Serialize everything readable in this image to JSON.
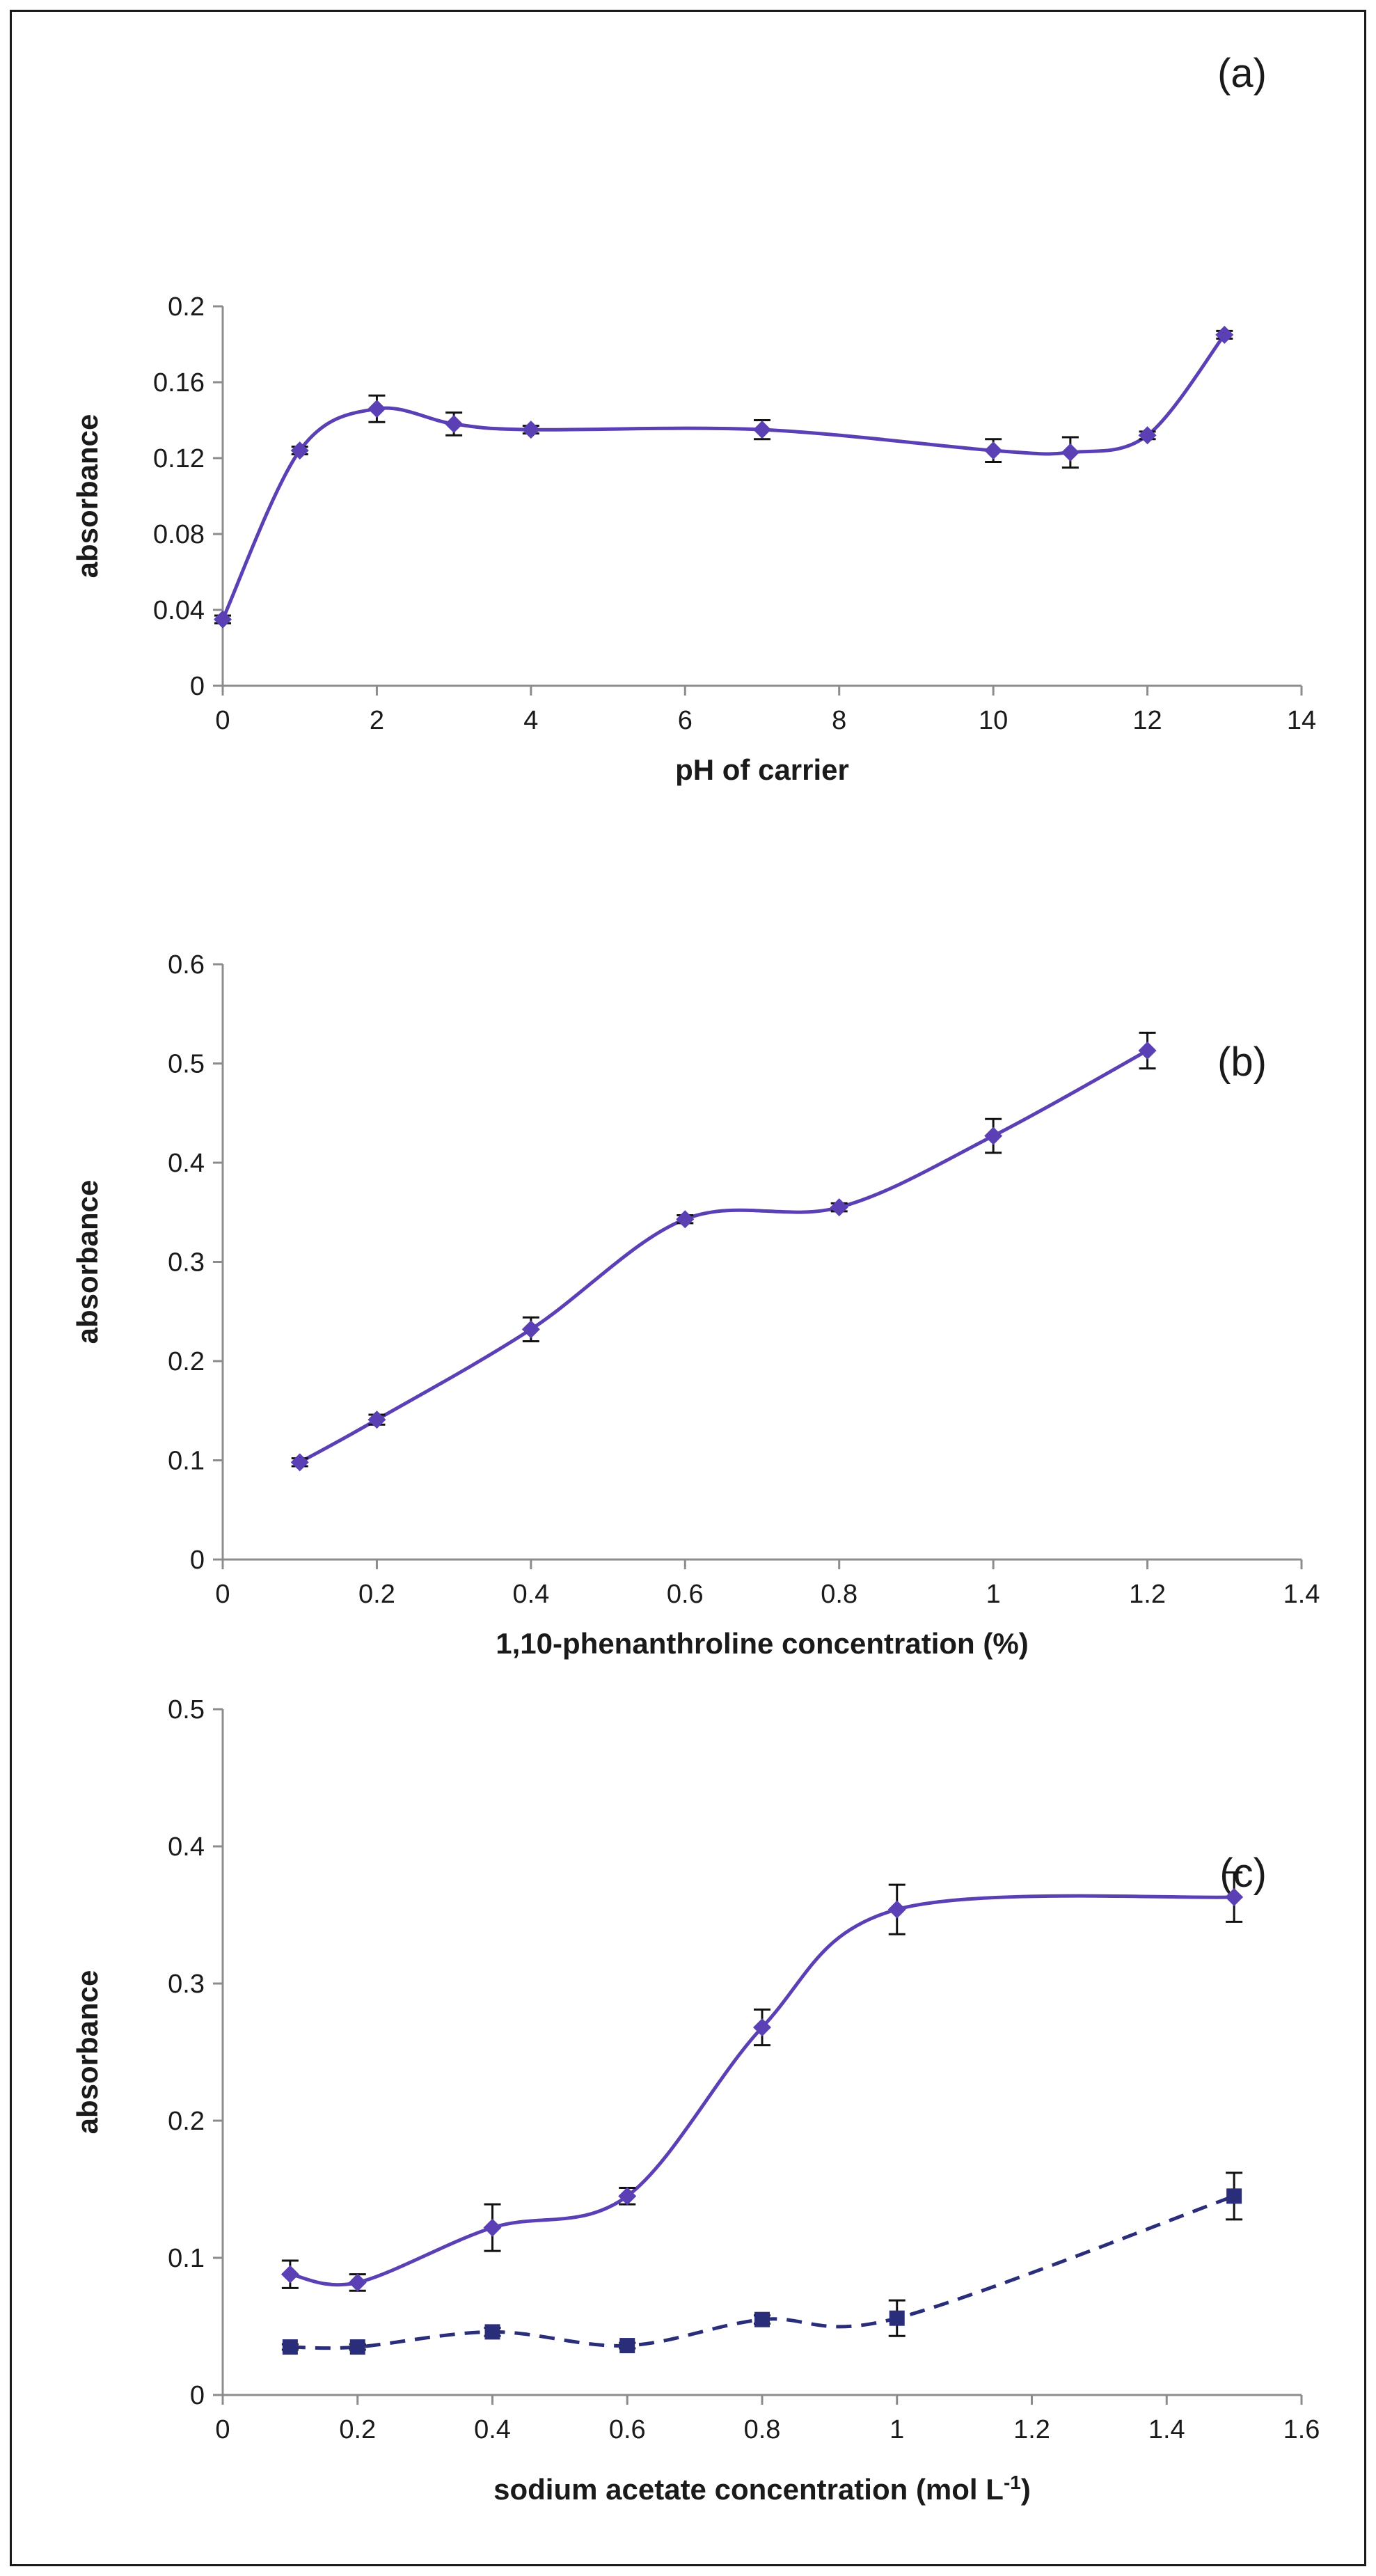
{
  "chart_data": [
    {
      "type": "line",
      "panel_label": "(a)",
      "xlabel": "pH of carrier",
      "ylabel": "absorbance",
      "xlim": [
        0,
        14
      ],
      "ylim": [
        0,
        0.2
      ],
      "x_ticks": [
        0,
        2,
        4,
        6,
        8,
        10,
        12,
        14
      ],
      "x_tick_labels": [
        "0",
        "2",
        "4",
        "6",
        "8",
        "10",
        "12",
        "14"
      ],
      "y_ticks": [
        0,
        0.04,
        0.08,
        0.12,
        0.16,
        0.2
      ],
      "y_tick_labels": [
        "0",
        "0.04",
        "0.08",
        "0.12",
        "0.16",
        "0.2"
      ],
      "grid": false,
      "series": [
        {
          "color": "#5b3fb4",
          "marker": "diamond",
          "line_style": "solid",
          "x": [
            0,
            1,
            2,
            3,
            4,
            7,
            10,
            11,
            12,
            13
          ],
          "y": [
            0.035,
            0.124,
            0.146,
            0.138,
            0.135,
            0.135,
            0.124,
            0.123,
            0.132,
            0.185
          ],
          "error": [
            0.002,
            0.002,
            0.007,
            0.006,
            0.002,
            0.005,
            0.006,
            0.008,
            0.002,
            0.002
          ]
        }
      ]
    },
    {
      "type": "line",
      "panel_label": "(b)",
      "xlabel": "1,10-phenanthroline concentration (%)",
      "ylabel": "absorbance",
      "xlim": [
        0,
        1.4
      ],
      "ylim": [
        0,
        0.6
      ],
      "x_ticks": [
        0,
        0.2,
        0.4,
        0.6,
        0.8,
        1,
        1.2,
        1.4
      ],
      "x_tick_labels": [
        "0",
        "0.2",
        "0.4",
        "0.6",
        "0.8",
        "1",
        "1.2",
        "1.4"
      ],
      "y_ticks": [
        0,
        0.1,
        0.2,
        0.3,
        0.4,
        0.5,
        0.6
      ],
      "y_tick_labels": [
        "0",
        "0.1",
        "0.2",
        "0.3",
        "0.4",
        "0.5",
        "0.6"
      ],
      "grid": false,
      "series": [
        {
          "color": "#5b3fb4",
          "marker": "diamond",
          "line_style": "solid",
          "x": [
            0.1,
            0.2,
            0.4,
            0.6,
            0.8,
            1.0,
            1.2
          ],
          "y": [
            0.098,
            0.141,
            0.232,
            0.343,
            0.355,
            0.427,
            0.513
          ],
          "error": [
            0.004,
            0.005,
            0.012,
            0.004,
            0.004,
            0.017,
            0.018
          ]
        }
      ]
    },
    {
      "type": "line",
      "panel_label": "(c)",
      "xlabel": "sodium acetate concentration (mol L",
      "xlabel_sup": "-1",
      "xlabel_end": ")",
      "ylabel": "absorbance",
      "xlim": [
        0,
        1.6
      ],
      "ylim": [
        0,
        0.5
      ],
      "x_ticks": [
        0,
        0.2,
        0.4,
        0.6,
        0.8,
        1,
        1.2,
        1.4,
        1.6
      ],
      "x_tick_labels": [
        "0",
        "0.2",
        "0.4",
        "0.6",
        "0.8",
        "1",
        "1.2",
        "1.4",
        "1.6"
      ],
      "y_ticks": [
        0,
        0.1,
        0.2,
        0.3,
        0.4,
        0.5
      ],
      "y_tick_labels": [
        "0",
        "0.1",
        "0.2",
        "0.3",
        "0.4",
        "0.5"
      ],
      "grid": false,
      "series": [
        {
          "color": "#5b3fb4",
          "marker": "diamond",
          "line_style": "solid",
          "x": [
            0.1,
            0.2,
            0.4,
            0.6,
            0.8,
            1.0,
            1.5
          ],
          "y": [
            0.088,
            0.082,
            0.122,
            0.145,
            0.268,
            0.354,
            0.363
          ],
          "error": [
            0.01,
            0.006,
            0.017,
            0.006,
            0.013,
            0.018,
            0.018
          ]
        },
        {
          "color": "#2a2d7a",
          "marker": "square",
          "line_style": "dashed",
          "x": [
            0.1,
            0.2,
            0.4,
            0.6,
            0.8,
            1.0,
            1.5
          ],
          "y": [
            0.035,
            0.035,
            0.046,
            0.036,
            0.055,
            0.056,
            0.145
          ],
          "error": [
            0.002,
            0.002,
            0.003,
            0.002,
            0.003,
            0.013,
            0.017
          ]
        }
      ]
    }
  ]
}
